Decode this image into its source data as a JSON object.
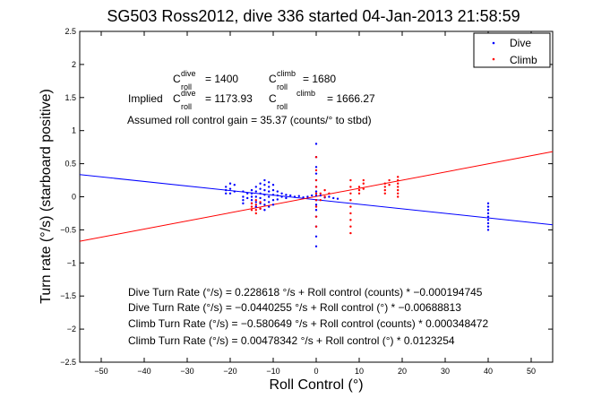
{
  "chart_data": {
    "type": "scatter",
    "title": "SG503 Ross2012, dive 336 started 04-Jan-2013 21:58:59",
    "xlabel": "Roll Control (°)",
    "ylabel": "Turn rate (°/s) (starboard positive)",
    "xlim": [
      -55,
      55
    ],
    "ylim": [
      -2.5,
      2.5
    ],
    "x_ticks": [
      "−50",
      "−40",
      "−30",
      "−20",
      "−10",
      "0",
      "10",
      "20",
      "30",
      "40",
      "50"
    ],
    "y_ticks": [
      "2.5",
      "2",
      "1.5",
      "1",
      "0.5",
      "0",
      "−0.5",
      "−1",
      "−1.5",
      "−2",
      "−2.5"
    ],
    "x_tick_values": [
      -50,
      -40,
      -30,
      -20,
      -10,
      0,
      10,
      20,
      30,
      40,
      50
    ],
    "y_tick_values": [
      2.5,
      2,
      1.5,
      1,
      0.5,
      0,
      -0.5,
      -1,
      -1.5,
      -2,
      -2.5
    ],
    "grid": false,
    "legend": {
      "placement": "top-right",
      "entries": [
        {
          "name": "Dive",
          "color": "#0000ff"
        },
        {
          "name": "Climb",
          "color": "#ff0000"
        }
      ]
    },
    "series": [
      {
        "name": "Dive",
        "color": "#0000ff",
        "points": [
          [
            -21,
            0.15
          ],
          [
            -21,
            0.1
          ],
          [
            -21,
            0.05
          ],
          [
            -20,
            0.2
          ],
          [
            -20,
            0.12
          ],
          [
            -20,
            0.05
          ],
          [
            -19,
            0.18
          ],
          [
            -19,
            0.08
          ],
          [
            -17,
            0.0
          ],
          [
            -17,
            -0.05
          ],
          [
            -17,
            0.08
          ],
          [
            -17,
            -0.1
          ],
          [
            -16,
            0.05
          ],
          [
            -16,
            -0.02
          ],
          [
            -15,
            0.1
          ],
          [
            -15,
            0.05
          ],
          [
            -15,
            0.0
          ],
          [
            -15,
            -0.05
          ],
          [
            -15,
            -0.1
          ],
          [
            -14,
            0.15
          ],
          [
            -14,
            0.08
          ],
          [
            -14,
            0.0
          ],
          [
            -14,
            -0.08
          ],
          [
            -14,
            -0.15
          ],
          [
            -13,
            0.2
          ],
          [
            -13,
            0.12
          ],
          [
            -13,
            0.05
          ],
          [
            -13,
            -0.02
          ],
          [
            -13,
            -0.1
          ],
          [
            -13,
            -0.18
          ],
          [
            -12,
            0.25
          ],
          [
            -12,
            0.18
          ],
          [
            -12,
            0.1
          ],
          [
            -12,
            0.03
          ],
          [
            -12,
            -0.05
          ],
          [
            -12,
            -0.12
          ],
          [
            -12,
            -0.2
          ],
          [
            -11,
            0.22
          ],
          [
            -11,
            0.15
          ],
          [
            -11,
            0.08
          ],
          [
            -11,
            0.0
          ],
          [
            -11,
            -0.08
          ],
          [
            -11,
            -0.15
          ],
          [
            -10,
            0.18
          ],
          [
            -10,
            0.1
          ],
          [
            -10,
            0.03
          ],
          [
            -10,
            -0.05
          ],
          [
            -10,
            -0.12
          ],
          [
            -9,
            0.08
          ],
          [
            -9,
            0.02
          ],
          [
            -9,
            -0.04
          ],
          [
            -8,
            0.05
          ],
          [
            -8,
            0.0
          ],
          [
            -7,
            0.03
          ],
          [
            -7,
            -0.02
          ],
          [
            -6,
            0.02
          ],
          [
            -5,
            0.0
          ],
          [
            -4,
            0.01
          ],
          [
            -3,
            -0.01
          ],
          [
            -2,
            0.0
          ],
          [
            -1,
            0.02
          ],
          [
            0,
            0.8
          ],
          [
            0,
            0.6
          ],
          [
            0,
            0.45
          ],
          [
            0,
            0.35
          ],
          [
            0,
            0.25
          ],
          [
            0,
            0.15
          ],
          [
            0,
            0.08
          ],
          [
            0,
            0.02
          ],
          [
            0,
            -0.05
          ],
          [
            0,
            -0.12
          ],
          [
            0,
            -0.2
          ],
          [
            0,
            -0.3
          ],
          [
            0,
            -0.45
          ],
          [
            0,
            -0.6
          ],
          [
            0,
            -0.75
          ],
          [
            1,
            0.02
          ],
          [
            2,
            -0.01
          ],
          [
            3,
            0.0
          ],
          [
            4,
            -0.02
          ],
          [
            5,
            -0.03
          ],
          [
            40,
            -0.1
          ],
          [
            40,
            -0.15
          ],
          [
            40,
            -0.2
          ],
          [
            40,
            -0.25
          ],
          [
            40,
            -0.3
          ],
          [
            40,
            -0.35
          ],
          [
            40,
            -0.4
          ],
          [
            40,
            -0.45
          ],
          [
            40,
            -0.5
          ]
        ]
      },
      {
        "name": "Climb",
        "color": "#ff0000",
        "points": [
          [
            -15,
            -0.1
          ],
          [
            -15,
            -0.15
          ],
          [
            -15,
            -0.2
          ],
          [
            -14,
            -0.05
          ],
          [
            -14,
            -0.12
          ],
          [
            -14,
            -0.2
          ],
          [
            -14,
            -0.25
          ],
          [
            -13,
            -0.08
          ],
          [
            -13,
            -0.18
          ],
          [
            0,
            0.6
          ],
          [
            0,
            0.4
          ],
          [
            0,
            0.25
          ],
          [
            0,
            0.15
          ],
          [
            0,
            0.05
          ],
          [
            0,
            -0.05
          ],
          [
            0,
            -0.15
          ],
          [
            0,
            -0.3
          ],
          [
            0,
            -0.45
          ],
          [
            1,
            0.05
          ],
          [
            1,
            -0.05
          ],
          [
            2,
            0.1
          ],
          [
            2,
            0.0
          ],
          [
            3,
            0.05
          ],
          [
            8,
            0.25
          ],
          [
            8,
            0.15
          ],
          [
            8,
            0.05
          ],
          [
            8,
            -0.05
          ],
          [
            8,
            -0.15
          ],
          [
            8,
            -0.25
          ],
          [
            8,
            -0.35
          ],
          [
            8,
            -0.45
          ],
          [
            8,
            -0.55
          ],
          [
            10,
            0.15
          ],
          [
            10,
            0.1
          ],
          [
            10,
            0.05
          ],
          [
            11,
            0.25
          ],
          [
            11,
            0.2
          ],
          [
            11,
            0.12
          ],
          [
            16,
            0.2
          ],
          [
            16,
            0.15
          ],
          [
            16,
            0.1
          ],
          [
            16,
            0.05
          ],
          [
            17,
            0.25
          ],
          [
            17,
            0.18
          ],
          [
            19,
            0.3
          ],
          [
            19,
            0.25
          ],
          [
            19,
            0.2
          ],
          [
            19,
            0.15
          ],
          [
            19,
            0.1
          ],
          [
            19,
            0.05
          ],
          [
            19,
            0.0
          ]
        ]
      }
    ],
    "fit_lines": [
      {
        "name": "Dive fit",
        "color": "#0000ff",
        "intercept": -0.0440255,
        "slope": -0.00688813
      },
      {
        "name": "Climb fit",
        "color": "#ff0000",
        "intercept": 0.00478342,
        "slope": 0.0123254
      }
    ],
    "annotations": {
      "c_dive": "= 1400",
      "c_climb": "= 1680",
      "implied_label": "Implied",
      "implied_c_dive": "= 1173.93",
      "implied_c_climb": "= 1666.27",
      "c_letter": "C",
      "sup_dive": "dive",
      "sup_climb": "climb",
      "sub_roll": "roll",
      "assumed_gain": "Assumed roll control gain = 35.37 (counts/° to stbd)",
      "eq_dive_counts": "Dive Turn Rate (°/s) = 0.228618 °/s + Roll control (counts) * −0.000194745",
      "eq_dive_deg": "Dive Turn Rate (°/s) = −0.0440255 °/s + Roll control (°) * −0.00688813",
      "eq_climb_counts": "Climb Turn Rate (°/s) = −0.580649 °/s + Roll control (counts) * 0.000348472",
      "eq_climb_deg": "Climb Turn Rate (°/s) = 0.00478342 °/s + Roll control (°) * 0.0123254"
    }
  }
}
